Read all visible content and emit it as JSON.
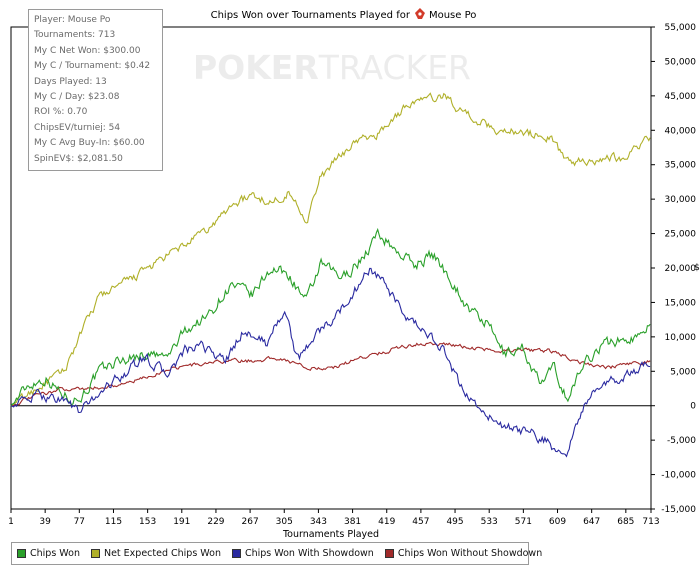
{
  "chart_data": {
    "type": "line",
    "title": "Chips Won over Tournaments Played for",
    "player_name": "Mouse Po",
    "watermark": {
      "bold": "POKER",
      "light": "TRACKER"
    },
    "xlabel": "Tournaments Played",
    "ylabel": "$",
    "xlim": [
      1,
      713
    ],
    "ylim": [
      -15000,
      55000
    ],
    "x_ticks": [
      1,
      39,
      77,
      115,
      153,
      191,
      229,
      267,
      305,
      343,
      381,
      419,
      457,
      495,
      533,
      571,
      609,
      647,
      685,
      713
    ],
    "x_tick_labels": [
      "1",
      "39",
      "77",
      "115",
      "153",
      "191",
      "229",
      "267",
      "305",
      "343",
      "381",
      "419",
      "457",
      "495",
      "533",
      "571",
      "609",
      "647",
      "685",
      "713"
    ],
    "y_ticks": [
      -15000,
      -10000,
      -5000,
      0,
      5000,
      10000,
      15000,
      20000,
      25000,
      30000,
      35000,
      40000,
      45000,
      50000,
      55000
    ],
    "y_tick_labels": [
      "-15,000",
      "-10,000",
      "-5,000",
      "0",
      "5,000",
      "10,000",
      "15,000",
      "20,000",
      "25,000",
      "30,000",
      "35,000",
      "40,000",
      "45,000",
      "50,000",
      "55,000"
    ],
    "grid": false,
    "legend_position": "bottom",
    "series": [
      {
        "name": "Chips Won",
        "color": "#2aa02a",
        "volatility": 850,
        "x": [
          1,
          20,
          40,
          60,
          77,
          100,
          120,
          150,
          175,
          195,
          220,
          245,
          270,
          290,
          310,
          330,
          345,
          370,
          395,
          410,
          430,
          450,
          470,
          490,
          510,
          530,
          550,
          570,
          590,
          605,
          620,
          640,
          660,
          680,
          700,
          713
        ],
        "values": [
          0,
          3000,
          4000,
          1500,
          1000,
          5000,
          6500,
          7500,
          7000,
          11000,
          13000,
          17500,
          16000,
          20000,
          19000,
          15000,
          20500,
          18500,
          22000,
          25000,
          22500,
          20500,
          22000,
          18500,
          14000,
          12000,
          7500,
          8500,
          3000,
          5500,
          1000,
          6500,
          9000,
          9500,
          10000,
          13000
        ]
      },
      {
        "name": "Net Expected Chips Won",
        "color": "#b0b02a",
        "volatility": 650,
        "x": [
          1,
          30,
          60,
          77,
          100,
          130,
          160,
          190,
          220,
          250,
          270,
          290,
          310,
          330,
          345,
          365,
          385,
          405,
          425,
          445,
          465,
          485,
          500,
          520,
          540,
          560,
          580,
          600,
          620,
          640,
          660,
          680,
          700,
          713
        ],
        "values": [
          0,
          2500,
          5000,
          10000,
          16000,
          18000,
          20500,
          23000,
          25500,
          29500,
          30500,
          29500,
          31000,
          27000,
          33000,
          36000,
          38500,
          39000,
          41500,
          44000,
          44500,
          45000,
          43000,
          41500,
          40000,
          40000,
          39500,
          39000,
          35500,
          35500,
          36000,
          36000,
          38000,
          39000
        ]
      },
      {
        "name": "Chips Won With Showdown",
        "color": "#2a2aa0",
        "volatility": 750,
        "x": [
          1,
          30,
          60,
          77,
          100,
          130,
          150,
          175,
          195,
          215,
          240,
          260,
          285,
          305,
          320,
          340,
          360,
          380,
          400,
          420,
          440,
          460,
          480,
          500,
          520,
          540,
          560,
          580,
          600,
          610,
          620,
          635,
          650,
          670,
          690,
          713
        ],
        "values": [
          0,
          1500,
          1000,
          -1000,
          2000,
          5000,
          7000,
          4500,
          8000,
          8500,
          6500,
          11000,
          9000,
          14000,
          6500,
          10500,
          12500,
          16000,
          20000,
          17000,
          12500,
          11000,
          8500,
          3000,
          0,
          -2500,
          -3500,
          -4000,
          -5500,
          -7000,
          -6500,
          -1000,
          2000,
          3500,
          4500,
          6500
        ]
      },
      {
        "name": "Chips Won Without Showdown",
        "color": "#a02a2a",
        "volatility": 300,
        "x": [
          1,
          30,
          60,
          90,
          120,
          150,
          180,
          210,
          240,
          270,
          300,
          330,
          360,
          390,
          420,
          450,
          480,
          510,
          540,
          570,
          600,
          630,
          660,
          690,
          713
        ],
        "values": [
          0,
          1500,
          2500,
          2500,
          3000,
          4000,
          5500,
          6000,
          6500,
          6500,
          7000,
          5500,
          5500,
          7000,
          8000,
          9000,
          9000,
          8500,
          8000,
          8000,
          8000,
          6500,
          5500,
          6000,
          6500
        ]
      }
    ]
  },
  "stats": [
    "Player: Mouse Po",
    "Tournaments: 713",
    "My C Net Won: $300.00",
    "My C / Tournament: $0.42",
    "Days Played: 13",
    "My C / Day: $23.08",
    "ROI %: 0.70",
    "ChipsEV/turniej: 54",
    "My C Avg Buy-In: $60.00",
    "SpinEV$: $2,081.50"
  ]
}
